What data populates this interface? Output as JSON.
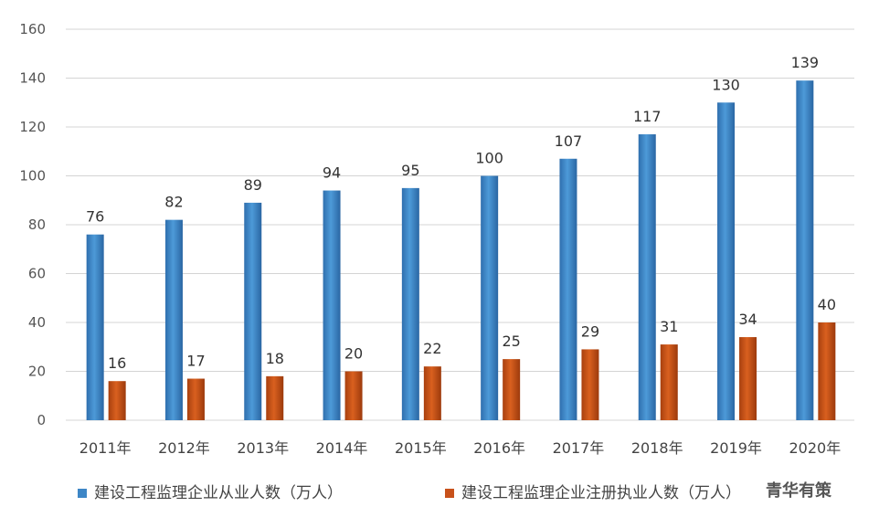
{
  "chart_data": {
    "type": "bar",
    "categories": [
      "2011年",
      "2012年",
      "2013年",
      "2014年",
      "2015年",
      "2016年",
      "2017年",
      "2018年",
      "2019年",
      "2020年"
    ],
    "series": [
      {
        "name": "建设工程监理企业从业人数（万人）",
        "color": "#3d86c6",
        "values": [
          76,
          82,
          89,
          94,
          95,
          100,
          107,
          117,
          130,
          139
        ]
      },
      {
        "name": "建设工程监理企业注册执业人数（万人）",
        "color": "#c8511a",
        "values": [
          16,
          17,
          18,
          20,
          22,
          25,
          29,
          31,
          34,
          40
        ]
      }
    ],
    "ylim": [
      0,
      160
    ],
    "yticks": [
      0,
      20,
      40,
      60,
      80,
      100,
      120,
      140,
      160
    ],
    "grid": true,
    "legend": "bottom"
  },
  "watermark": {
    "text": "青华有策"
  }
}
